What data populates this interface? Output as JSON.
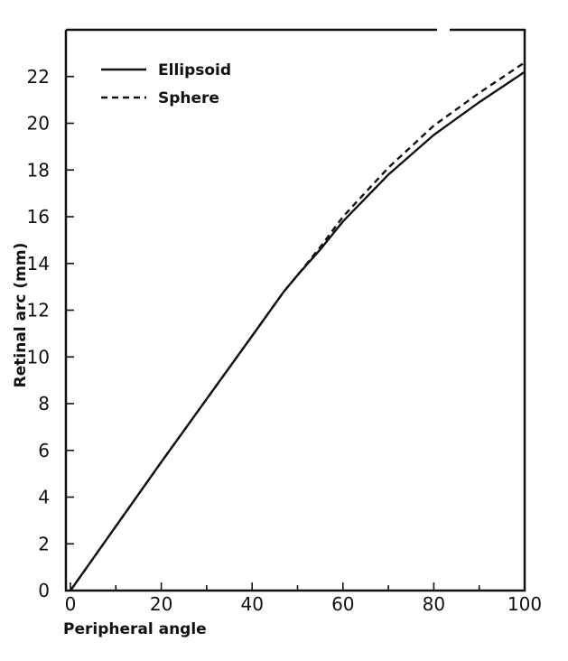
{
  "chart_data": {
    "type": "line",
    "title": "",
    "xlabel": "Peripheral angle",
    "ylabel": "Retinal arc (mm)",
    "xlim": [
      0,
      100
    ],
    "ylim": [
      0,
      24
    ],
    "x_ticks": [
      "0",
      "20",
      "40",
      "60",
      "80",
      "100"
    ],
    "y_ticks": [
      "0",
      "2",
      "4",
      "6",
      "8",
      "10",
      "12",
      "14",
      "16",
      "18",
      "20",
      "22"
    ],
    "grid": false,
    "legend_position": "top-left",
    "series": [
      {
        "name": "Ellipsoid",
        "style": "solid",
        "x": [
          0,
          10,
          20,
          30,
          40,
          47,
          50,
          55,
          60,
          70,
          80,
          90,
          100
        ],
        "y": [
          0,
          2.75,
          5.5,
          8.2,
          10.9,
          12.8,
          13.5,
          14.6,
          15.8,
          17.8,
          19.5,
          20.9,
          22.2
        ]
      },
      {
        "name": "Sphere",
        "style": "dashed",
        "x": [
          0,
          10,
          20,
          30,
          40,
          47,
          50,
          55,
          60,
          70,
          80,
          90,
          100
        ],
        "y": [
          0,
          2.75,
          5.5,
          8.2,
          10.9,
          12.8,
          13.5,
          14.7,
          16.0,
          18.1,
          19.9,
          21.3,
          22.6
        ]
      }
    ]
  }
}
